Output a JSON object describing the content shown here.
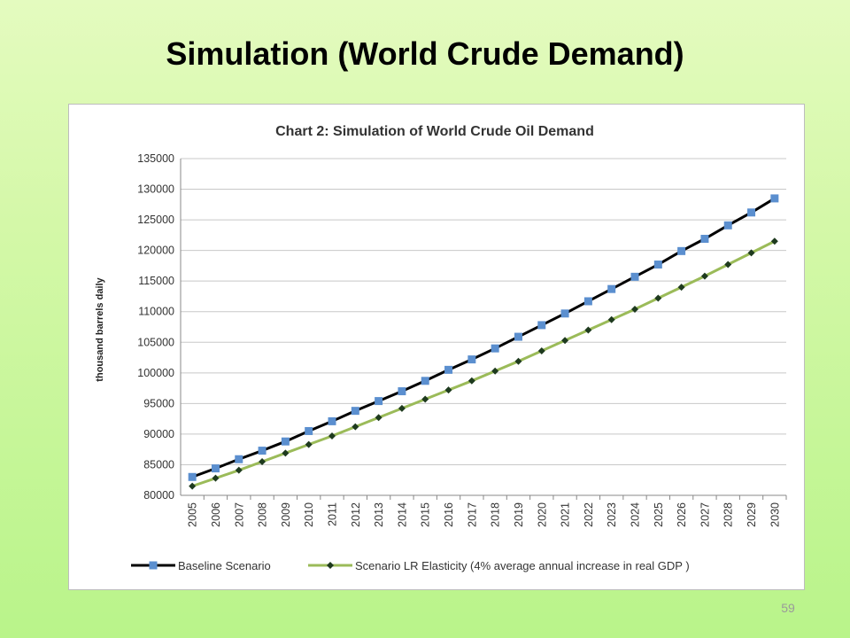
{
  "slide": {
    "title": "Simulation (World Crude Demand)",
    "page_number": "59"
  },
  "chart_data": {
    "type": "line",
    "title": "Chart 2: Simulation of World Crude Oil Demand",
    "xlabel": "",
    "ylabel": "thousand barrels daily",
    "ylim": [
      80000,
      135000
    ],
    "yticks": [
      80000,
      85000,
      90000,
      95000,
      100000,
      105000,
      110000,
      115000,
      120000,
      125000,
      130000,
      135000
    ],
    "grid": true,
    "legend_position": "bottom",
    "categories": [
      "2005",
      "2006",
      "2007",
      "2008",
      "2009",
      "2010",
      "2011",
      "2012",
      "2013",
      "2014",
      "2015",
      "2016",
      "2017",
      "2018",
      "2019",
      "2020",
      "2021",
      "2022",
      "2023",
      "2024",
      "2025",
      "2026",
      "2027",
      "2028",
      "2029",
      "2030"
    ],
    "series": [
      {
        "name": "Baseline Scenario",
        "line_color": "#000000",
        "marker": "square",
        "marker_color": "#5b8fcf",
        "values": [
          83000,
          84400,
          85900,
          87300,
          88800,
          90500,
          92100,
          93800,
          95400,
          97000,
          98700,
          100500,
          102200,
          104000,
          105900,
          107800,
          109700,
          111700,
          113700,
          115700,
          117700,
          119900,
          121900,
          124100,
          126200,
          128500
        ]
      },
      {
        "name": "Scenario LR Elasticity (4% average annual increase in real GDP )",
        "line_color": "#9bbb59",
        "marker": "diamond",
        "marker_color": "#1e3a1e",
        "values": [
          81500,
          82800,
          84100,
          85500,
          86900,
          88300,
          89700,
          91200,
          92700,
          94200,
          95700,
          97200,
          98700,
          100300,
          101900,
          103600,
          105300,
          107000,
          108700,
          110400,
          112200,
          114000,
          115800,
          117700,
          119600,
          121500
        ]
      }
    ]
  }
}
